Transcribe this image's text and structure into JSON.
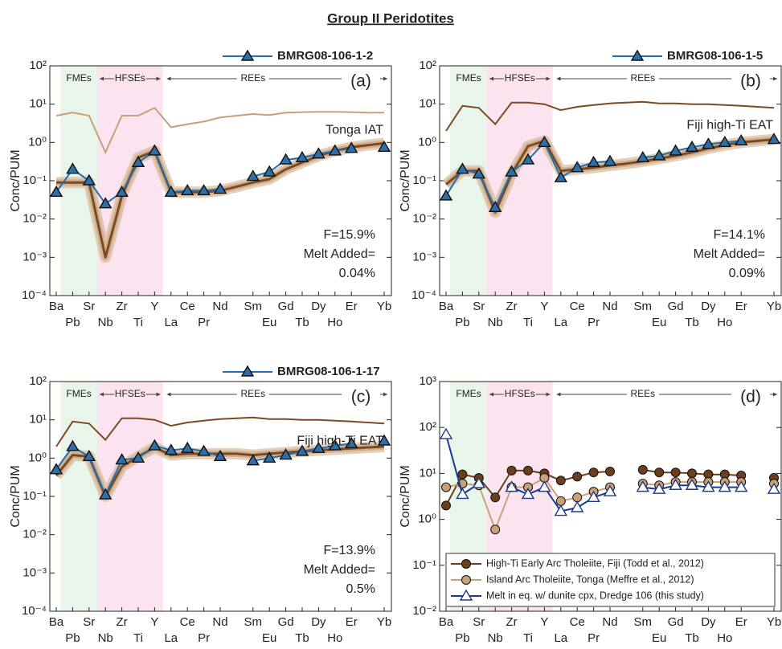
{
  "title": "Group II Peridotites",
  "chart_data": [
    {
      "type": "line",
      "ylog": true,
      "ylabel": "Conc/PUM",
      "panel_label": "(a)",
      "regions": [
        "FMEs",
        "HFSEs",
        "REEs"
      ],
      "categories": [
        "Ba",
        "Pb",
        "Sr",
        "Nb",
        "Zr",
        "Ti",
        "Y",
        "La",
        "Ce",
        "Pr",
        "Nd",
        null,
        "Sm",
        "Eu",
        "Gd",
        "Tb",
        "Dy",
        "Ho",
        "Er",
        null,
        "Yb"
      ],
      "ylim": [
        0.0001,
        100
      ],
      "yticks": [
        {
          "value": 0.0001,
          "label": "10⁻⁴"
        },
        {
          "value": 0.001,
          "label": "10⁻³"
        },
        {
          "value": 0.01,
          "label": "10⁻²"
        },
        {
          "value": 0.1,
          "label": "10⁻¹"
        },
        {
          "value": 1,
          "label": "10⁰"
        },
        {
          "value": 10,
          "label": "10¹"
        },
        {
          "value": 100,
          "label": "10²"
        }
      ],
      "legend": "top right outside",
      "series": [
        {
          "name": "BMRG08-106-1-2",
          "color": "#1f6fb5",
          "marker": "triangle",
          "marker_fill": "#2e6fa8",
          "values": [
            0.05,
            0.2,
            0.1,
            0.025,
            0.05,
            0.3,
            0.6,
            0.05,
            0.055,
            0.055,
            0.06,
            null,
            0.13,
            0.17,
            0.35,
            0.4,
            0.5,
            0.6,
            0.7,
            null,
            0.75
          ]
        }
      ],
      "model": {
        "color": "#7a4a26",
        "band_color": "#d2b08c",
        "values": [
          0.09,
          0.09,
          0.09,
          0.001,
          0.04,
          0.4,
          0.6,
          0.05,
          0.05,
          0.05,
          0.055,
          0.07,
          0.09,
          0.11,
          0.2,
          0.3,
          0.45,
          0.6,
          0.75,
          0.85,
          0.95
        ]
      },
      "reference": {
        "name": "Tonga IAT",
        "color": "#c8a07a",
        "values": [
          5,
          6,
          5,
          0.55,
          5,
          5,
          8,
          2.5,
          3,
          3.5,
          4.5,
          5,
          5.5,
          5.2,
          6,
          6.2,
          6.3,
          6.3,
          6.2,
          6,
          6
        ]
      },
      "annotations": [
        "F=15.9%",
        "Melt Added=",
        "0.04%"
      ]
    },
    {
      "type": "line",
      "ylog": true,
      "ylabel": "Conc/PUM",
      "panel_label": "(b)",
      "regions": [
        "FMEs",
        "HFSEs",
        "REEs"
      ],
      "categories": [
        "Ba",
        "Pb",
        "Sr",
        "Nb",
        "Zr",
        "Ti",
        "Y",
        "La",
        "Ce",
        "Pr",
        "Nd",
        null,
        "Sm",
        "Eu",
        "Gd",
        "Tb",
        "Dy",
        "Ho",
        "Er",
        null,
        "Yb"
      ],
      "ylim": [
        0.0001,
        100
      ],
      "yticks": [
        {
          "value": 0.0001,
          "label": "10⁻⁴"
        },
        {
          "value": 0.001,
          "label": "10⁻³"
        },
        {
          "value": 0.01,
          "label": "10⁻²"
        },
        {
          "value": 0.1,
          "label": "10⁻¹"
        },
        {
          "value": 1,
          "label": "10⁰"
        },
        {
          "value": 10,
          "label": "10¹"
        },
        {
          "value": 100,
          "label": "10²"
        }
      ],
      "legend": "top right outside",
      "series": [
        {
          "name": "BMRG08-106-1-5",
          "color": "#1f6fb5",
          "marker": "triangle",
          "marker_fill": "#2e6fa8",
          "values": [
            0.04,
            0.2,
            0.15,
            0.02,
            0.17,
            0.35,
            1.0,
            0.12,
            0.22,
            0.3,
            0.32,
            null,
            0.4,
            0.45,
            0.6,
            0.75,
            0.9,
            1.0,
            1.1,
            null,
            1.2
          ]
        }
      ],
      "model": {
        "color": "#7a4a26",
        "band_color": "#d2b08c",
        "values": [
          0.08,
          0.18,
          0.18,
          0.015,
          0.15,
          0.8,
          1.1,
          0.18,
          0.2,
          0.22,
          0.25,
          0.28,
          0.32,
          0.38,
          0.45,
          0.55,
          0.7,
          0.85,
          1.0,
          1.1,
          1.2
        ]
      },
      "reference": {
        "name": "Fiji high-Ti EAT",
        "color": "#7b4a22",
        "values": [
          2,
          9,
          8,
          3,
          11,
          11,
          10,
          7,
          8.5,
          9.5,
          10.5,
          11,
          11.5,
          10.5,
          10.5,
          10,
          10,
          9.5,
          9,
          8.5,
          8
        ]
      },
      "annotations": [
        "F=14.1%",
        "Melt Added=",
        "0.09%"
      ]
    },
    {
      "type": "line",
      "ylog": true,
      "ylabel": "Conc/PUM",
      "panel_label": "(c)",
      "regions": [
        "FMEs",
        "HFSEs",
        "REEs"
      ],
      "categories": [
        "Ba",
        "Pb",
        "Sr",
        "Nb",
        "Zr",
        "Ti",
        "Y",
        "La",
        "Ce",
        "Pr",
        "Nd",
        null,
        "Sm",
        "Eu",
        "Gd",
        "Tb",
        "Dy",
        "Ho",
        "Er",
        null,
        "Yb"
      ],
      "ylim": [
        0.0001,
        100
      ],
      "yticks": [
        {
          "value": 0.0001,
          "label": "10⁻⁴"
        },
        {
          "value": 0.001,
          "label": "10⁻³"
        },
        {
          "value": 0.01,
          "label": "10⁻²"
        },
        {
          "value": 0.1,
          "label": "10⁻¹"
        },
        {
          "value": 1,
          "label": "10⁰"
        },
        {
          "value": 10,
          "label": "10¹"
        },
        {
          "value": 100,
          "label": "10²"
        }
      ],
      "legend": "top right outside",
      "series": [
        {
          "name": "BMRG08-106-1-17",
          "color": "#1f6fb5",
          "marker": "triangle",
          "marker_fill": "#2e6fa8",
          "values": [
            0.5,
            2,
            1.1,
            0.11,
            0.9,
            1.0,
            2.1,
            1.6,
            1.8,
            1.5,
            1.1,
            null,
            0.85,
            1.0,
            1.2,
            1.5,
            1.8,
            2.1,
            2.4,
            null,
            2.8
          ]
        }
      ],
      "model": {
        "color": "#7a4a26",
        "band_color": "#d2b08c",
        "values": [
          0.35,
          1.2,
          1.1,
          0.1,
          0.6,
          1.1,
          1.9,
          1.2,
          1.3,
          1.3,
          1.3,
          1.3,
          1.2,
          1.3,
          1.4,
          1.5,
          1.6,
          1.7,
          1.8,
          1.9,
          2.0
        ]
      },
      "reference": {
        "name": "Fiji high-Ti EAT",
        "color": "#7b4a22",
        "values": [
          2,
          9,
          8,
          3,
          11,
          11,
          10,
          7,
          8.5,
          9.5,
          10.5,
          11,
          11.5,
          10.5,
          10.5,
          10,
          10,
          9.5,
          9,
          8.5,
          8
        ]
      },
      "annotations": [
        "F=13.9%",
        "Melt Added=",
        "0.5%"
      ]
    },
    {
      "type": "line",
      "ylog": true,
      "ylabel": "Conc/PUM",
      "panel_label": "(d)",
      "regions": [
        "FMEs",
        "HFSEs",
        "REEs"
      ],
      "categories": [
        "Ba",
        "Pb",
        "Sr",
        "Nb",
        "Zr",
        "Ti",
        "Y",
        "La",
        "Ce",
        "Pr",
        "Nd",
        null,
        "Sm",
        "Eu",
        "Gd",
        "Tb",
        "Dy",
        "Ho",
        "Er",
        null,
        "Yb"
      ],
      "ylim": [
        0.01,
        1000
      ],
      "yticks": [
        {
          "value": 0.01,
          "label": "10⁻²"
        },
        {
          "value": 0.1,
          "label": "10⁻¹"
        },
        {
          "value": 1,
          "label": "10⁰"
        },
        {
          "value": 10,
          "label": "10¹"
        },
        {
          "value": 100,
          "label": "10²"
        },
        {
          "value": 1000,
          "label": "10³"
        }
      ],
      "legend": "lower left",
      "series": [
        {
          "name": "High-Ti Early Arc Tholeiite, Fiji (Todd et al., 2012)",
          "color": "#6b3f1e",
          "marker": "circle",
          "marker_fill": "#6b3f1e",
          "values": [
            2,
            9.5,
            8,
            3,
            11.5,
            11.5,
            10,
            7,
            8.5,
            10.5,
            11,
            null,
            12,
            10.5,
            10.5,
            10,
            9.5,
            9.5,
            9,
            null,
            8
          ]
        },
        {
          "name": "Island Arc Tholeiite, Tonga (Meffre et al., 2012)",
          "color": "#c8a07a",
          "marker": "circle",
          "marker_fill": "#c8a07a",
          "values": [
            5,
            6,
            5.5,
            0.6,
            5,
            5,
            8,
            2.5,
            3,
            4,
            5,
            null,
            6,
            5.5,
            6.5,
            6.5,
            6.5,
            6.5,
            6.5,
            null,
            6
          ]
        },
        {
          "name": "Melt in eq. w/ dunite cpx, Dredge 106 (this study)",
          "color": "#1c3a8c",
          "marker": "triangle",
          "marker_fill": "#ffffff",
          "values": [
            70,
            3.5,
            6,
            null,
            5,
            3.5,
            5,
            1.5,
            1.8,
            3,
            4,
            null,
            5,
            4.5,
            5.5,
            5.5,
            5,
            5,
            5,
            null,
            4.5
          ]
        }
      ]
    }
  ]
}
